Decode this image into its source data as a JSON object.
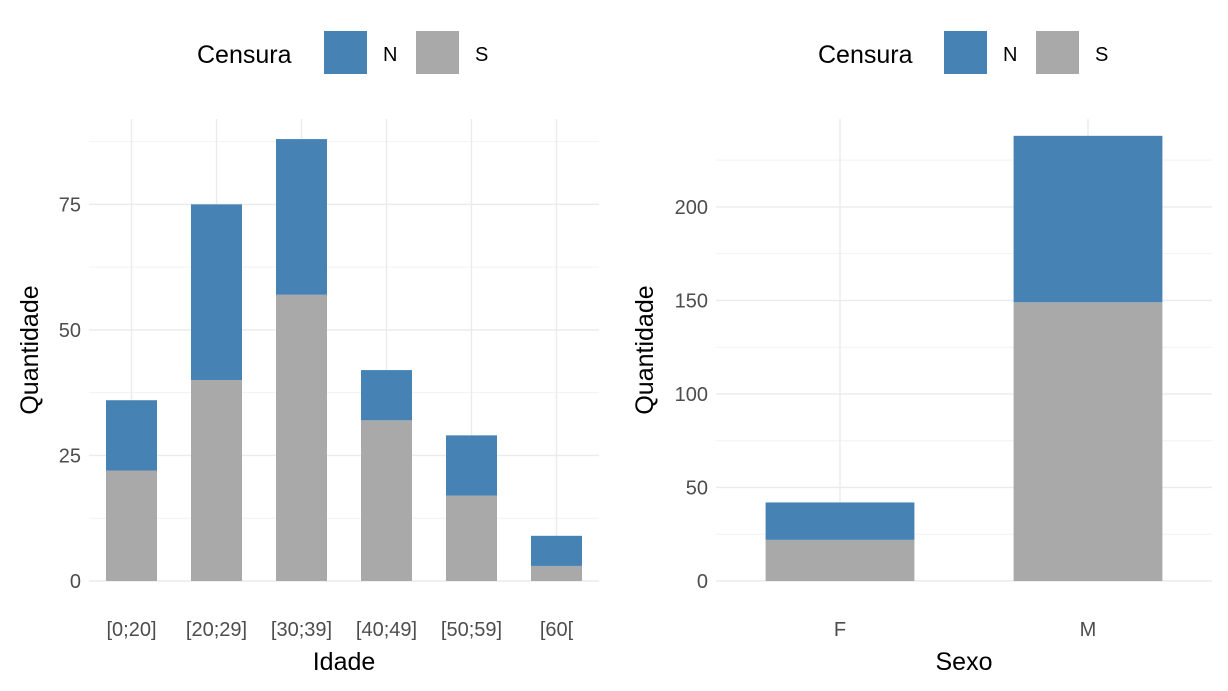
{
  "legend": {
    "title": "Censura",
    "items": [
      {
        "label": "N",
        "color": "#4682B4"
      },
      {
        "label": "S",
        "color": "#A9A9A9"
      }
    ]
  },
  "chart_data": [
    {
      "type": "bar",
      "stacked": true,
      "categories": [
        "[0;20]",
        "[20;29]",
        "[30;39]",
        "[40;49]",
        "[50;59]",
        "[60["
      ],
      "series": [
        {
          "name": "S",
          "color": "#A9A9A9",
          "values": [
            22,
            40,
            57,
            32,
            17,
            3
          ]
        },
        {
          "name": "N",
          "color": "#4682B4",
          "values": [
            14,
            35,
            31,
            10,
            12,
            6
          ]
        }
      ],
      "xlabel": "Idade",
      "ylabel": "Quantidade",
      "yticks": [
        0,
        25,
        50,
        75
      ],
      "ylim": [
        0,
        92
      ],
      "grid": true,
      "legend_position": "top"
    },
    {
      "type": "bar",
      "stacked": true,
      "categories": [
        "F",
        "M"
      ],
      "series": [
        {
          "name": "S",
          "color": "#A9A9A9",
          "values": [
            22,
            149
          ]
        },
        {
          "name": "N",
          "color": "#4682B4",
          "values": [
            20,
            89
          ]
        }
      ],
      "xlabel": "Sexo",
      "ylabel": "Quantidade",
      "yticks": [
        0,
        50,
        100,
        150,
        200
      ],
      "ylim": [
        0,
        247
      ],
      "grid": true,
      "legend_position": "top"
    }
  ]
}
